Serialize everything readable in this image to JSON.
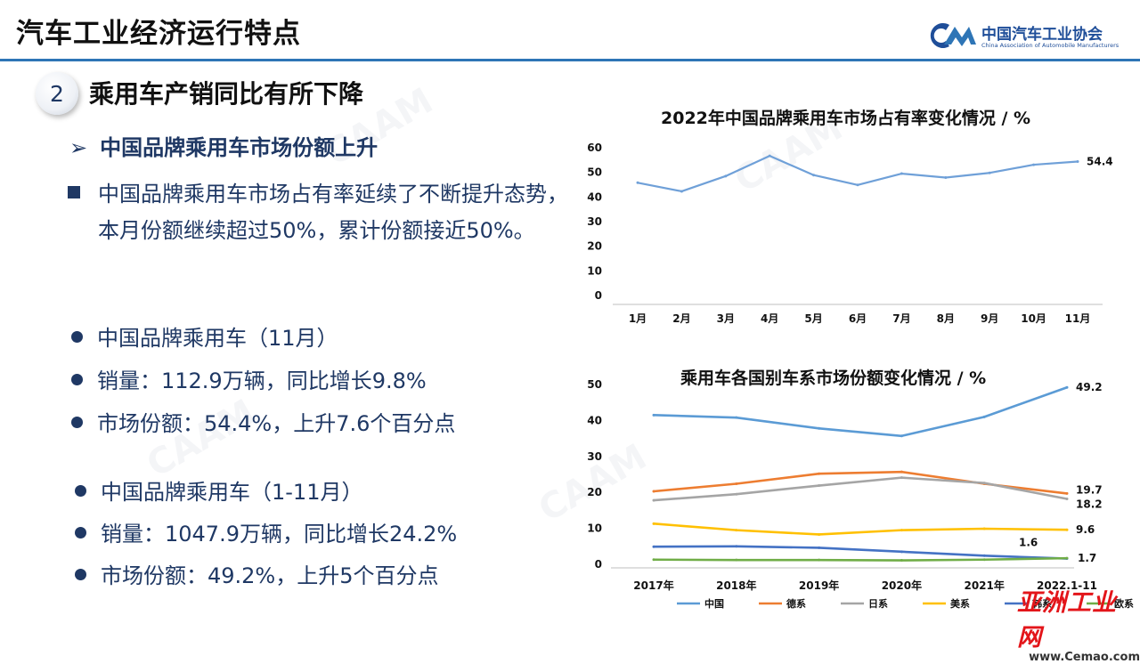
{
  "header": {
    "title": "汽车工业经济运行特点"
  },
  "logo": {
    "name_cn": "中国汽车工业协会",
    "name_en": "China Association of Automobile Manufacturers"
  },
  "section": {
    "number": "2",
    "title": "乘用车产销同比有所下降"
  },
  "subheading": {
    "arrow": "➢",
    "text": "中国品牌乘用车市场份额上升"
  },
  "paragraph": {
    "text": "中国品牌乘用车市场占有率延续了不断提升态势，本月份额继续超过50%，累计份额接近50%。"
  },
  "bullets_month": [
    "中国品牌乘用车（11月）",
    "销量：112.9万辆，同比增长9.8%",
    "市场份额：54.4%，上升7.6个百分点"
  ],
  "bullets_ytd": [
    "中国品牌乘用车（1-11月）",
    "销量：1047.9万辆，同比增长24.2%",
    "市场份额：49.2%，上升5个百分点"
  ],
  "site": {
    "name": "亚洲工业网",
    "url": "www.Cemao.com"
  },
  "chart_data": [
    {
      "type": "line",
      "title": "2022年中国品牌乘用车市场占有率变化情况 / %",
      "x": [
        "1月",
        "2月",
        "3月",
        "4月",
        "5月",
        "6月",
        "7月",
        "8月",
        "9月",
        "10月",
        "11月"
      ],
      "series": [
        {
          "values": [
            45.8,
            42.3,
            48.5,
            56.7,
            48.9,
            44.9,
            49.5,
            47.9,
            49.8,
            53.1,
            54.4
          ],
          "color": "#6fa0d8"
        }
      ],
      "ylim": [
        0,
        60
      ],
      "yticks": [
        0,
        10,
        20,
        30,
        40,
        50,
        60
      ],
      "labels": [
        {
          "index": 10,
          "text": "54.4"
        }
      ],
      "grid": false
    },
    {
      "type": "line",
      "title": "乘用车各国别车系市场份额变化情况 / %",
      "x": [
        "2017年",
        "2018年",
        "2019年",
        "2020年",
        "2021年",
        "2022.1-11"
      ],
      "series": [
        {
          "name": "中国",
          "color": "#5b9bd5",
          "values": [
            41.5,
            40.8,
            37.8,
            35.7,
            41.0,
            49.2
          ]
        },
        {
          "name": "德系",
          "color": "#ed7d31",
          "values": [
            20.3,
            22.4,
            25.2,
            25.7,
            22.4,
            19.7
          ]
        },
        {
          "name": "日系",
          "color": "#a5a5a5",
          "values": [
            17.8,
            19.5,
            21.9,
            24.1,
            22.6,
            18.2
          ]
        },
        {
          "name": "美系",
          "color": "#ffc000",
          "values": [
            11.3,
            9.5,
            8.3,
            9.5,
            9.9,
            9.6
          ]
        },
        {
          "name": "韩系",
          "color": "#4472c4",
          "values": [
            4.9,
            5.0,
            4.6,
            3.5,
            2.4,
            1.6
          ]
        },
        {
          "name": "欧系",
          "color": "#70ad47",
          "values": [
            1.3,
            1.2,
            1.2,
            1.1,
            1.3,
            1.7
          ]
        }
      ],
      "ylim": [
        0,
        50
      ],
      "yticks": [
        0,
        10,
        20,
        30,
        40,
        50
      ],
      "end_labels": [
        "49.2",
        "19.7",
        "18.2",
        "9.6",
        "1.6",
        "1.7"
      ],
      "legend": "bottom",
      "grid": false
    }
  ]
}
